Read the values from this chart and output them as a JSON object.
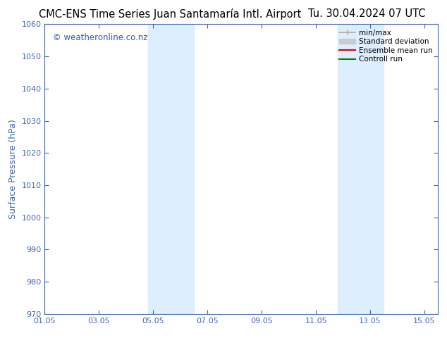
{
  "title_left": "CMC-ENS Time Series Juan Santamaría Intl. Airport",
  "title_right": "Tu. 30.04.2024 07 UTC",
  "ylabel": "Surface Pressure (hPa)",
  "ylim": [
    970,
    1060
  ],
  "yticks": [
    970,
    980,
    990,
    1000,
    1010,
    1020,
    1030,
    1040,
    1050,
    1060
  ],
  "xlim_start": 0,
  "xlim_end": 14.5,
  "xtick_labels": [
    "01.05",
    "03.05",
    "05.05",
    "07.05",
    "09.05",
    "11.05",
    "13.05",
    "15.05"
  ],
  "xtick_positions": [
    0,
    2,
    4,
    6,
    8,
    10,
    12,
    14
  ],
  "shaded_bands": [
    {
      "x_start": 3.8,
      "x_end": 5.5
    },
    {
      "x_start": 10.8,
      "x_end": 12.5
    }
  ],
  "shaded_color": "#ddeeff",
  "watermark_text": "© weatheronline.co.nz",
  "watermark_color": "#3355cc",
  "background_color": "#ffffff",
  "spine_color": "#4466aa",
  "tick_color": "#4466aa",
  "tick_label_color": "#4466aa",
  "legend_minmax_color": "#aaaaaa",
  "legend_std_color": "#cccccc",
  "legend_ensemble_color": "#dd0000",
  "legend_control_color": "#008800",
  "title_fontsize": 10.5,
  "axis_label_fontsize": 9,
  "tick_fontsize": 8,
  "watermark_fontsize": 8.5
}
